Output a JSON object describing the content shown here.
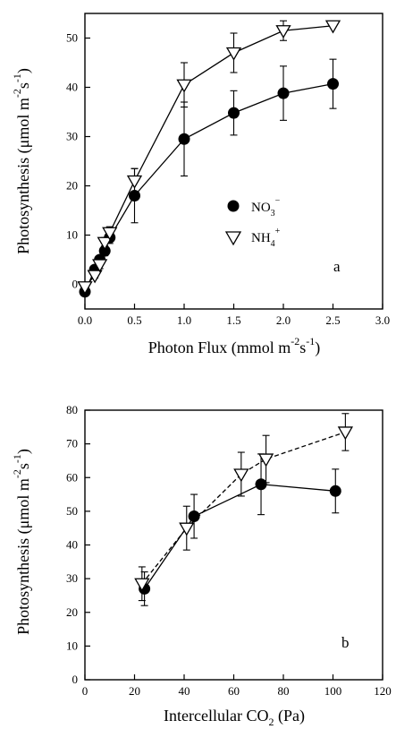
{
  "charts": [
    {
      "id": "a",
      "panel_label": "a",
      "xlabel": {
        "main": "Photon Flux (mmol m",
        "sup1": "-2",
        "mid": "s",
        "sup2": "-1",
        "end": ")"
      },
      "ylabel": {
        "main": "Photosynthesis (μmol m",
        "sup1": "-2",
        "mid": "s",
        "sup2": "-1",
        "end": ")"
      },
      "legend": [
        {
          "key": "no3",
          "text": "NO",
          "sub": "3",
          "sup": "−"
        },
        {
          "key": "nh4",
          "text": "NH",
          "sub": "4",
          "sup": "+"
        }
      ]
    },
    {
      "id": "b",
      "panel_label": "b",
      "xlabel": {
        "main": "Intercellular CO",
        "sub": "2",
        "end": " (Pa)"
      },
      "ylabel": {
        "main": "Photosynthesis (μmol m",
        "sup1": "-2",
        "mid": "s",
        "sup2": "-1",
        "end": ")"
      }
    }
  ],
  "chart_data": [
    {
      "type": "line",
      "panel": "a",
      "xlabel": "Photon Flux (mmol m-2 s-1)",
      "ylabel": "Photosynthesis (μmol m-2 s-1)",
      "xlim": [
        0,
        3
      ],
      "ylim": [
        -5,
        55
      ],
      "xticks": [
        "0.0",
        "0.5",
        "1.0",
        "1.5",
        "2.0",
        "2.5",
        "3.0"
      ],
      "yticks": [
        "0",
        "10",
        "20",
        "30",
        "40",
        "50"
      ],
      "series": [
        {
          "name": "NO3−",
          "marker": "filled-circle",
          "line": "solid",
          "x": [
            0.0,
            0.1,
            0.15,
            0.2,
            0.25,
            0.5,
            1.0,
            1.5,
            2.0,
            2.5
          ],
          "y": [
            -1.5,
            3.0,
            5.0,
            6.8,
            9.5,
            18.0,
            29.5,
            34.8,
            38.8,
            40.7
          ],
          "err": [
            0,
            0.5,
            0.7,
            1.0,
            1.2,
            5.5,
            7.5,
            4.5,
            5.5,
            5.0
          ]
        },
        {
          "name": "NH4+",
          "marker": "open-triangle-down",
          "line": "solid",
          "x": [
            0.0,
            0.1,
            0.15,
            0.2,
            0.25,
            0.5,
            1.0,
            1.5,
            2.0,
            2.5
          ],
          "y": [
            -0.5,
            1.8,
            4.0,
            8.5,
            10.5,
            21.0,
            40.5,
            47.0,
            51.5,
            52.5
          ],
          "err": [
            0,
            0.5,
            0.8,
            1.0,
            1.2,
            2.5,
            4.5,
            4.0,
            2.0,
            0
          ]
        }
      ]
    },
    {
      "type": "line",
      "panel": "b",
      "xlabel": "Intercellular CO2 (Pa)",
      "ylabel": "Photosynthesis (μmol m-2 s-1)",
      "xlim": [
        0,
        120
      ],
      "ylim": [
        0,
        80
      ],
      "xticks": [
        "0",
        "20",
        "40",
        "60",
        "80",
        "100",
        "120"
      ],
      "yticks": [
        "0",
        "10",
        "20",
        "30",
        "40",
        "50",
        "60",
        "70",
        "80"
      ],
      "series": [
        {
          "name": "NO3−",
          "marker": "filled-circle",
          "line": "solid",
          "x": [
            24,
            44,
            71,
            101
          ],
          "y": [
            27,
            48.5,
            58,
            56
          ],
          "err": [
            5,
            6.5,
            9,
            6.5
          ]
        },
        {
          "name": "NH4+",
          "marker": "open-triangle-down",
          "line": "dashed",
          "x": [
            23,
            41,
            63,
            73,
            105
          ],
          "y": [
            28.5,
            45,
            61,
            65.5,
            73.5
          ],
          "err": [
            5,
            6.5,
            6.5,
            7,
            5.5
          ]
        }
      ]
    }
  ]
}
